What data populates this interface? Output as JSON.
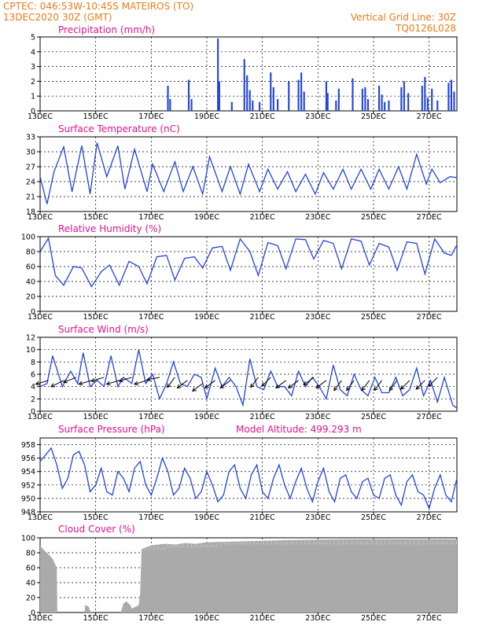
{
  "header": {
    "line1": "CPTEC:   046:53W-10:45S   MATEIROS (TO)",
    "line2": "13DEC2020 30Z (GMT)",
    "vgrid": "Vertical Grid Line: 30Z",
    "code": "TQ0126L028"
  },
  "colors": {
    "header": "#e87c18",
    "title": "#e0148c",
    "series": "#2244dd",
    "cloud": "#aaaaaa",
    "wind_arrow": "#000000"
  },
  "xaxis": {
    "start_day": 13,
    "end_day": 28,
    "tick_labels": [
      "13DEC",
      "15DEC",
      "17DEC",
      "19DEC",
      "21DEC",
      "23DEC",
      "25DEC",
      "27DEC"
    ],
    "tick_days": [
      13,
      15,
      17,
      19,
      21,
      23,
      25,
      27
    ]
  },
  "chart_data": [
    {
      "id": "precip",
      "type": "bar",
      "title": "Precipitation (mm/h)",
      "ylim": [
        0,
        5
      ],
      "yticks": [
        0,
        1,
        2,
        3,
        4,
        5
      ],
      "x_days": [
        17.6,
        17.68,
        18.35,
        18.45,
        19.4,
        19.45,
        19.9,
        20.35,
        20.45,
        20.55,
        20.65,
        20.9,
        21.3,
        21.4,
        21.55,
        21.95,
        22.3,
        22.4,
        22.5,
        23.3,
        23.35,
        23.65,
        23.75,
        24.25,
        24.6,
        24.7,
        24.8,
        25.2,
        25.3,
        25.4,
        25.55,
        26.0,
        26.1,
        26.25,
        26.75,
        26.85,
        26.95,
        27.1,
        27.3,
        27.7,
        27.8,
        27.9
      ],
      "values": [
        1.7,
        0.8,
        2.1,
        0.8,
        4.9,
        2.0,
        0.6,
        3.5,
        2.4,
        1.4,
        0.7,
        0.6,
        2.6,
        1.6,
        0.8,
        2.0,
        2.1,
        2.6,
        1.3,
        2.0,
        1.2,
        0.7,
        1.5,
        2.2,
        1.5,
        1.6,
        0.8,
        1.7,
        1.1,
        0.6,
        0.7,
        1.6,
        2.0,
        1.2,
        1.7,
        2.3,
        0.9,
        1.5,
        0.7,
        1.9,
        2.1,
        1.3
      ]
    },
    {
      "id": "temperature",
      "type": "line",
      "title": "Surface Temperature (nC)",
      "ylim": [
        18,
        33
      ],
      "yticks": [
        18,
        21,
        24,
        27,
        30,
        33
      ],
      "x_days": [
        13.0,
        13.25,
        13.5,
        13.85,
        14.15,
        14.5,
        14.8,
        15.05,
        15.4,
        15.8,
        16.05,
        16.4,
        16.85,
        17.05,
        17.45,
        17.85,
        18.15,
        18.5,
        18.85,
        19.1,
        19.55,
        19.85,
        20.2,
        20.5,
        20.9,
        21.2,
        21.55,
        21.9,
        22.2,
        22.55,
        22.9,
        23.2,
        23.55,
        23.9,
        24.2,
        24.55,
        24.9,
        25.2,
        25.55,
        25.9,
        26.2,
        26.55,
        26.9,
        27.1,
        27.4,
        27.75,
        28.0
      ],
      "values": [
        25.0,
        19.5,
        26.0,
        31.0,
        22.0,
        31.2,
        21.5,
        31.8,
        25.0,
        31.2,
        22.5,
        30.5,
        22.0,
        27.5,
        22.0,
        28.0,
        22.0,
        27.0,
        21.5,
        29.0,
        22.0,
        27.0,
        21.5,
        27.5,
        22.0,
        26.5,
        22.5,
        26.0,
        22.0,
        25.5,
        21.5,
        25.8,
        22.5,
        26.5,
        22.5,
        26.5,
        22.5,
        26.5,
        22.5,
        27.0,
        22.5,
        29.5,
        23.5,
        26.5,
        23.8,
        25.0,
        24.8
      ]
    },
    {
      "id": "humidity",
      "type": "line",
      "title": "Relative Humidity (%)",
      "ylim": [
        0,
        100
      ],
      "yticks": [
        0,
        20,
        40,
        60,
        80,
        100
      ],
      "x_days": [
        13.0,
        13.3,
        13.55,
        13.85,
        14.2,
        14.5,
        14.85,
        15.2,
        15.5,
        15.85,
        16.2,
        16.55,
        16.85,
        17.2,
        17.55,
        17.85,
        18.2,
        18.55,
        18.85,
        19.2,
        19.55,
        19.85,
        20.2,
        20.55,
        20.85,
        21.2,
        21.55,
        21.85,
        22.2,
        22.55,
        22.85,
        23.2,
        23.55,
        23.85,
        24.2,
        24.55,
        24.85,
        25.2,
        25.55,
        25.85,
        26.2,
        26.55,
        26.85,
        27.2,
        27.55,
        27.8,
        28.0
      ],
      "values": [
        80,
        98,
        48,
        35,
        60,
        58,
        33,
        53,
        62,
        35,
        67,
        60,
        37,
        73,
        75,
        42,
        71,
        73,
        58,
        85,
        87,
        55,
        97,
        80,
        48,
        92,
        88,
        57,
        97,
        96,
        70,
        95,
        91,
        57,
        97,
        94,
        62,
        91,
        86,
        55,
        93,
        91,
        50,
        97,
        78,
        75,
        89
      ]
    },
    {
      "id": "wind",
      "type": "line",
      "title": "Surface Wind (m/s)",
      "ylim": [
        0,
        12
      ],
      "yticks": [
        0,
        2,
        4,
        6,
        8,
        10,
        12
      ],
      "x_days": [
        13.0,
        13.25,
        13.45,
        13.8,
        14.1,
        14.35,
        14.55,
        14.8,
        15.05,
        15.3,
        15.55,
        15.8,
        16.0,
        16.3,
        16.55,
        16.8,
        17.05,
        17.3,
        17.55,
        17.8,
        18.05,
        18.3,
        18.55,
        18.8,
        19.0,
        19.3,
        19.55,
        19.8,
        20.05,
        20.3,
        20.55,
        20.8,
        21.05,
        21.3,
        21.55,
        21.8,
        22.05,
        22.3,
        22.55,
        22.8,
        23.05,
        23.3,
        23.55,
        23.8,
        24.05,
        24.3,
        24.55,
        24.8,
        25.05,
        25.3,
        25.55,
        25.8,
        26.05,
        26.3,
        26.55,
        26.8,
        27.05,
        27.3,
        27.55,
        27.85,
        28.0
      ],
      "values": [
        4.0,
        4.5,
        9.0,
        4.0,
        6.5,
        4.5,
        9.5,
        4.0,
        5.0,
        4.0,
        9.0,
        4.0,
        5.5,
        4.5,
        10.0,
        4.5,
        6.0,
        2.0,
        4.5,
        8.0,
        4.5,
        4.0,
        6.0,
        5.5,
        2.0,
        7.0,
        4.0,
        5.5,
        4.0,
        1.0,
        8.5,
        4.0,
        3.5,
        6.5,
        4.0,
        4.0,
        2.5,
        6.5,
        4.0,
        5.5,
        4.0,
        2.0,
        7.5,
        3.5,
        2.5,
        6.0,
        3.5,
        2.5,
        5.5,
        3.0,
        3.0,
        5.5,
        2.5,
        3.5,
        7.0,
        2.5,
        5.0,
        1.5,
        5.5,
        1.0,
        0.5
      ],
      "arrows": [
        {
          "day": 13.3,
          "speed": 5,
          "u": -1.0,
          "v": -0.3
        },
        {
          "day": 13.85,
          "speed": 5,
          "u": -1.0,
          "v": -0.5
        },
        {
          "day": 14.3,
          "speed": 5.5,
          "u": -1.0,
          "v": -0.4
        },
        {
          "day": 14.85,
          "speed": 5,
          "u": -1.0,
          "v": -0.3
        },
        {
          "day": 15.3,
          "speed": 5.5,
          "u": -1.0,
          "v": -0.3
        },
        {
          "day": 15.85,
          "speed": 5,
          "u": -1.0,
          "v": -0.3
        },
        {
          "day": 16.3,
          "speed": 5.5,
          "u": -1.0,
          "v": -0.3
        },
        {
          "day": 16.85,
          "speed": 5,
          "u": -1.0,
          "v": -0.3
        },
        {
          "day": 17.3,
          "speed": 5.5,
          "u": -1.0,
          "v": -0.2
        },
        {
          "day": 17.85,
          "speed": 5.5,
          "u": -0.6,
          "v": -0.8
        },
        {
          "day": 18.3,
          "speed": 5,
          "u": -0.8,
          "v": -0.6
        },
        {
          "day": 18.85,
          "speed": 4.5,
          "u": -0.8,
          "v": -0.6
        },
        {
          "day": 19.3,
          "speed": 5,
          "u": -0.8,
          "v": -0.6
        },
        {
          "day": 19.85,
          "speed": 5,
          "u": -0.8,
          "v": -0.6
        },
        {
          "day": 20.85,
          "speed": 5.5,
          "u": -0.6,
          "v": -0.8
        },
        {
          "day": 21.3,
          "speed": 5.5,
          "u": -0.7,
          "v": -0.7
        },
        {
          "day": 21.85,
          "speed": 5,
          "u": -0.8,
          "v": -0.6
        },
        {
          "day": 22.3,
          "speed": 5,
          "u": -0.8,
          "v": -0.6
        },
        {
          "day": 22.85,
          "speed": 5.5,
          "u": -0.8,
          "v": -0.6
        },
        {
          "day": 23.3,
          "speed": 5,
          "u": -0.8,
          "v": -0.6
        },
        {
          "day": 23.85,
          "speed": 5,
          "u": -0.6,
          "v": -0.8
        },
        {
          "day": 24.3,
          "speed": 5,
          "u": -0.6,
          "v": -0.8
        },
        {
          "day": 24.85,
          "speed": 5,
          "u": -0.6,
          "v": -0.8
        },
        {
          "day": 25.3,
          "speed": 5,
          "u": -0.6,
          "v": -0.8
        },
        {
          "day": 25.85,
          "speed": 5,
          "u": -0.6,
          "v": -0.8
        },
        {
          "day": 26.3,
          "speed": 5,
          "u": -0.7,
          "v": -0.7
        },
        {
          "day": 26.85,
          "speed": 5,
          "u": -0.7,
          "v": -0.7
        },
        {
          "day": 27.3,
          "speed": 5.5,
          "u": -0.7,
          "v": -0.7
        }
      ]
    },
    {
      "id": "pressure",
      "type": "line",
      "title": "Surface Pressure (hPa)",
      "note": "Model Altitude: 499.293 m",
      "ylim": [
        948,
        959
      ],
      "yticks": [
        948,
        950,
        952,
        954,
        956,
        958
      ],
      "x_days": [
        13.0,
        13.2,
        13.4,
        13.6,
        13.8,
        14.0,
        14.2,
        14.4,
        14.6,
        14.8,
        15.0,
        15.2,
        15.4,
        15.6,
        15.8,
        16.0,
        16.2,
        16.4,
        16.6,
        16.8,
        17.0,
        17.2,
        17.4,
        17.6,
        17.8,
        18.0,
        18.2,
        18.4,
        18.6,
        18.8,
        19.0,
        19.2,
        19.4,
        19.6,
        19.8,
        20.0,
        20.2,
        20.4,
        20.6,
        20.8,
        21.0,
        21.2,
        21.4,
        21.6,
        21.8,
        22.0,
        22.2,
        22.4,
        22.6,
        22.8,
        23.0,
        23.2,
        23.4,
        23.6,
        23.8,
        24.0,
        24.2,
        24.4,
        24.6,
        24.8,
        25.0,
        25.2,
        25.4,
        25.6,
        25.8,
        26.0,
        26.2,
        26.4,
        26.6,
        26.8,
        27.0,
        27.2,
        27.4,
        27.6,
        27.8,
        28.0
      ],
      "values": [
        955.5,
        956.5,
        957.5,
        955.0,
        951.5,
        953.0,
        956.5,
        957.0,
        955.0,
        951.0,
        952.0,
        954.5,
        951.0,
        950.5,
        954.0,
        953.0,
        951.0,
        954.5,
        955.5,
        952.0,
        950.5,
        953.0,
        956.0,
        954.0,
        950.5,
        951.5,
        954.5,
        953.0,
        950.0,
        951.0,
        954.0,
        952.0,
        949.5,
        950.5,
        954.0,
        955.0,
        951.5,
        950.0,
        953.5,
        955.0,
        951.0,
        950.0,
        953.0,
        955.0,
        952.0,
        950.0,
        952.5,
        954.5,
        951.5,
        949.5,
        952.5,
        954.5,
        951.0,
        949.5,
        953.0,
        953.5,
        951.0,
        950.0,
        952.5,
        953.0,
        950.5,
        950.0,
        953.0,
        953.5,
        950.5,
        949.0,
        952.5,
        953.5,
        951.0,
        950.5,
        948.5,
        951.5,
        953.5,
        950.5,
        949.5,
        953.0
      ]
    },
    {
      "id": "cloud",
      "type": "area",
      "title": "Cloud Cover (%)",
      "ylim": [
        0,
        100
      ],
      "yticks": [
        0,
        20,
        40,
        60,
        80,
        100
      ],
      "x_days": [
        13.0,
        13.1,
        13.3,
        13.45,
        13.6,
        13.62,
        14.6,
        14.62,
        14.75,
        14.8,
        14.9,
        15.0,
        15.9,
        16.0,
        16.1,
        16.25,
        16.3,
        16.55,
        16.6,
        16.65,
        17.0,
        17.5,
        17.9,
        18.2,
        18.6,
        19.0,
        20.0,
        21.0,
        22.0,
        24.0,
        26.0,
        28.0
      ],
      "values": [
        90,
        85,
        78,
        72,
        60,
        0,
        0,
        10,
        8,
        2,
        0,
        0,
        0,
        12,
        15,
        10,
        5,
        10,
        25,
        85,
        90,
        92,
        91,
        93,
        92,
        94,
        95,
        96,
        97,
        98,
        98,
        98
      ],
      "gaps": [
        {
          "from": 13.62,
          "to": 14.6
        },
        {
          "from": 14.9,
          "to": 15.9
        }
      ]
    }
  ]
}
